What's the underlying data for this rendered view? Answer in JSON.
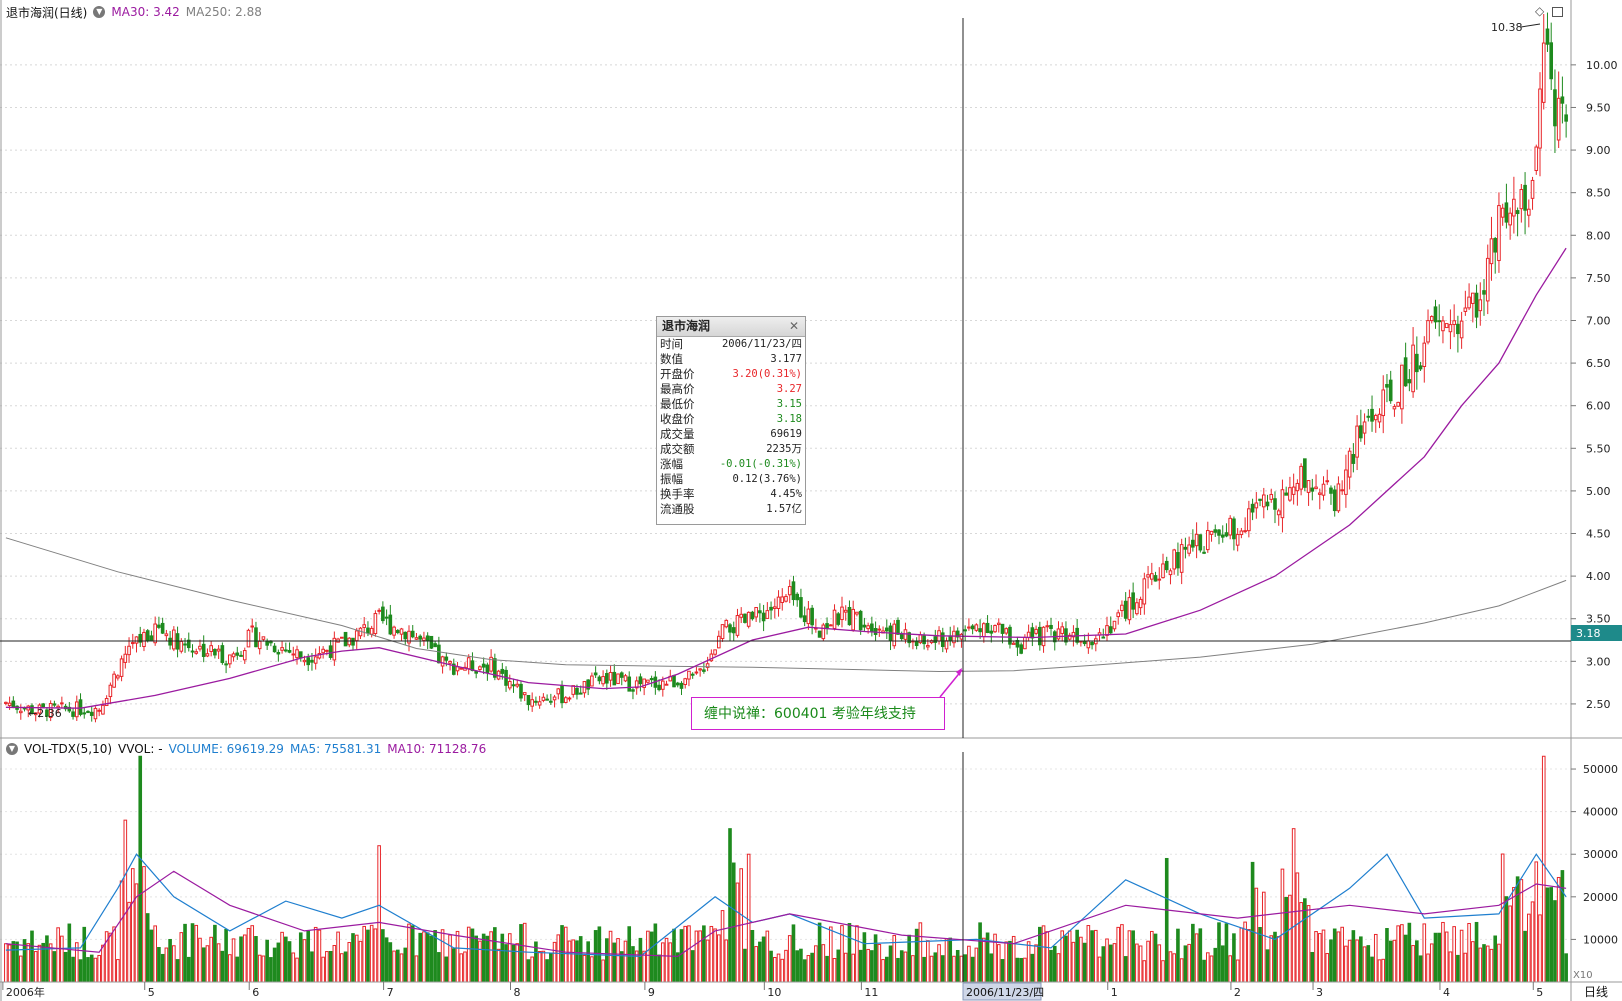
{
  "header": {
    "stock_title": "退市海润(日线)",
    "ma30_label": "MA30: 3.42",
    "ma250_label": "MA250: 2.88"
  },
  "vol_header": {
    "indicator": "VOL-TDX(5,10)",
    "vvol": "VVOL: -",
    "volume": "VOLUME: 69619.29",
    "ma5": "MA5: 75581.31",
    "ma10": "MA10: 71128.76"
  },
  "colors": {
    "up": "#e8262a",
    "down": "#1e8a1e",
    "ma30": "#9b1ba0",
    "ma250": "#808080",
    "vol_ma5": "#1f7fcf",
    "vol_ma10": "#9b1ba0"
  },
  "crosshair": {
    "date_label": "2006/11/23/四",
    "price_label": "3.18"
  },
  "markers": {
    "high": "10.38",
    "low": "2.36"
  },
  "annotation": "缠中说禅：600401 考验年线支持",
  "info_panel": {
    "title": "退市海润",
    "rows": [
      {
        "label": "时间",
        "value": "2006/11/23/四",
        "color": "#222222"
      },
      {
        "label": "数值",
        "value": "3.177",
        "color": "#222222"
      },
      {
        "label": "开盘价",
        "value": "3.20(0.31%)",
        "color": "#e8262a"
      },
      {
        "label": "最高价",
        "value": "3.27",
        "color": "#e8262a"
      },
      {
        "label": "最低价",
        "value": "3.15",
        "color": "#1e8a1e"
      },
      {
        "label": "收盘价",
        "value": "3.18",
        "color": "#1e8a1e"
      },
      {
        "label": "成交量",
        "value": "69619",
        "color": "#222222"
      },
      {
        "label": "成交额",
        "value": "2235万",
        "color": "#222222"
      },
      {
        "label": "涨幅",
        "value": "-0.01(-0.31%)",
        "color": "#1e8a1e"
      },
      {
        "label": "振幅",
        "value": "0.12(3.76%)",
        "color": "#222222"
      },
      {
        "label": "换手率",
        "value": "4.45%",
        "color": "#222222"
      },
      {
        "label": "流通股",
        "value": "1.57亿",
        "color": "#222222"
      }
    ]
  },
  "period_label": "日线",
  "vol_unit": "X10",
  "chart_data": {
    "type": "candlestick",
    "price_axis": {
      "ticks": [
        "2.50",
        "3.00",
        "3.50",
        "4.00",
        "4.50",
        "5.00",
        "5.50",
        "6.00",
        "6.50",
        "7.00",
        "7.50",
        "8.00",
        "8.50",
        "9.00",
        "9.50",
        "10.00"
      ],
      "range": [
        2.1,
        10.55
      ]
    },
    "volume_axis": {
      "ticks": [
        "10000",
        "20000",
        "30000",
        "40000",
        "50000"
      ],
      "range": [
        0,
        54000
      ]
    },
    "x_labels": [
      "2006年",
      "5",
      "6",
      "7",
      "8",
      "9",
      "10",
      "11",
      "1",
      "2",
      "3",
      "4",
      "5"
    ],
    "ma30_path": [
      [
        0,
        2.46
      ],
      [
        20,
        2.45
      ],
      [
        40,
        2.6
      ],
      [
        60,
        2.8
      ],
      [
        80,
        3.05
      ],
      [
        90,
        3.12
      ],
      [
        100,
        3.16
      ],
      [
        120,
        2.95
      ],
      [
        140,
        2.75
      ],
      [
        160,
        2.68
      ],
      [
        170,
        2.7
      ],
      [
        180,
        2.85
      ],
      [
        200,
        3.25
      ],
      [
        215,
        3.4
      ],
      [
        230,
        3.35
      ],
      [
        250,
        3.3
      ],
      [
        275,
        3.28
      ],
      [
        300,
        3.32
      ],
      [
        320,
        3.6
      ],
      [
        340,
        4.0
      ],
      [
        360,
        4.6
      ],
      [
        380,
        5.4
      ],
      [
        390,
        6.0
      ],
      [
        400,
        6.5
      ],
      [
        410,
        7.3
      ],
      [
        418,
        7.85
      ]
    ],
    "ma250_path": [
      [
        0,
        4.45
      ],
      [
        30,
        4.05
      ],
      [
        60,
        3.72
      ],
      [
        90,
        3.42
      ],
      [
        110,
        3.15
      ],
      [
        130,
        3.02
      ],
      [
        150,
        2.96
      ],
      [
        180,
        2.94
      ],
      [
        200,
        2.93
      ],
      [
        230,
        2.9
      ],
      [
        250,
        2.88
      ],
      [
        270,
        2.89
      ],
      [
        290,
        2.95
      ],
      [
        320,
        3.05
      ],
      [
        350,
        3.2
      ],
      [
        380,
        3.45
      ],
      [
        400,
        3.65
      ],
      [
        418,
        3.95
      ]
    ],
    "vol_ma5_path": [
      [
        0,
        7500
      ],
      [
        20,
        8000
      ],
      [
        30,
        22000
      ],
      [
        35,
        30000
      ],
      [
        45,
        20000
      ],
      [
        60,
        12000
      ],
      [
        75,
        19000
      ],
      [
        90,
        15000
      ],
      [
        100,
        18000
      ],
      [
        120,
        8000
      ],
      [
        140,
        7000
      ],
      [
        170,
        6000
      ],
      [
        190,
        20000
      ],
      [
        200,
        14000
      ],
      [
        210,
        16000
      ],
      [
        230,
        9000
      ],
      [
        260,
        10000
      ],
      [
        280,
        8000
      ],
      [
        300,
        24000
      ],
      [
        320,
        16000
      ],
      [
        340,
        10000
      ],
      [
        360,
        22000
      ],
      [
        370,
        30000
      ],
      [
        380,
        15000
      ],
      [
        400,
        16000
      ],
      [
        410,
        30000
      ],
      [
        418,
        20000
      ]
    ],
    "vol_ma10_path": [
      [
        0,
        9000
      ],
      [
        25,
        7000
      ],
      [
        35,
        20000
      ],
      [
        45,
        26000
      ],
      [
        60,
        18000
      ],
      [
        80,
        12000
      ],
      [
        100,
        14000
      ],
      [
        120,
        11000
      ],
      [
        150,
        7000
      ],
      [
        180,
        6000
      ],
      [
        190,
        12000
      ],
      [
        210,
        16000
      ],
      [
        240,
        11000
      ],
      [
        270,
        9000
      ],
      [
        300,
        18000
      ],
      [
        330,
        15000
      ],
      [
        360,
        18000
      ],
      [
        380,
        16000
      ],
      [
        400,
        18000
      ],
      [
        410,
        23000
      ],
      [
        418,
        22000
      ]
    ]
  }
}
